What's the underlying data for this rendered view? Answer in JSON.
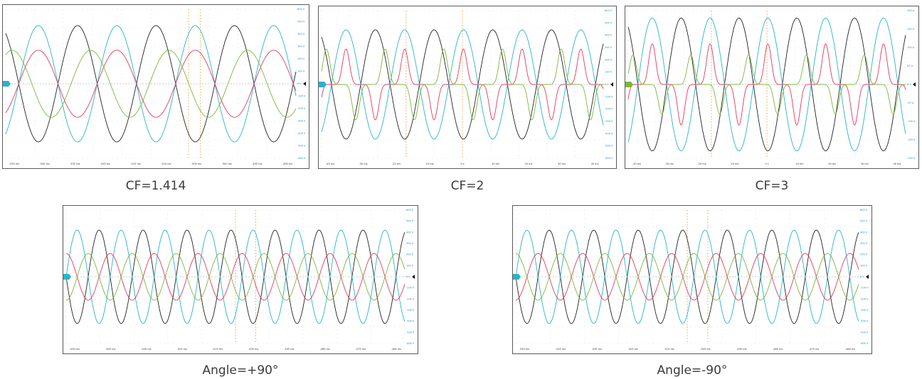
{
  "colors": {
    "background": "#ffffff",
    "grid": "#c8d6de",
    "marker": "#f0a040",
    "axis_text": "#1c8cc4",
    "ch1": "#222222",
    "ch2": "#2ab3c9",
    "ch3": "#e23a5c",
    "ch4": "#7ab83a"
  },
  "panels": [
    {
      "id": "cf-1414",
      "caption": "CF=1.414",
      "chart_data": {
        "type": "line",
        "waveform": "sine",
        "cycles": 3.7,
        "series": [
          {
            "color": "#222222",
            "amplitude": 0.78,
            "phase_deg": 120
          },
          {
            "color": "#2ab3c9",
            "amplitude": 0.78,
            "phase_deg": -60
          },
          {
            "color": "#e23a5c",
            "amplitude": 0.45,
            "phase_deg": -60
          },
          {
            "color": "#7ab83a",
            "amplitude": 0.45,
            "phase_deg": 60
          }
        ],
        "yticks": [
          "600 V",
          "500 V",
          "400 V",
          "300 V",
          "200 V",
          "100 V",
          "0 V",
          "-100 V",
          "-200 V",
          "-300 V",
          "-400 V",
          "-500 V",
          "-600 V"
        ],
        "xticks": [
          "-550 ms",
          "-545 ms",
          "-530 ms",
          "-520 ms",
          "-515 ms",
          "-510 ms",
          "-505 ms",
          "-500 ms",
          "-495 ms",
          "-490 ms"
        ]
      }
    },
    {
      "id": "cf-2",
      "caption": "CF=2",
      "chart_data": {
        "type": "line",
        "waveform": "sine",
        "cycles": 4.8,
        "series": [
          {
            "color": "#222222",
            "amplitude": 0.74,
            "phase_deg": 120
          },
          {
            "color": "#2ab3c9",
            "amplitude": 0.74,
            "phase_deg": -60
          },
          {
            "color": "#e23a5c",
            "amplitude": 0.48,
            "phase_deg": -60,
            "waveform": "pulse"
          },
          {
            "color": "#7ab83a",
            "amplitude": 0.48,
            "phase_deg": 60,
            "waveform": "pulse"
          }
        ],
        "yticks": [
          "600 V",
          "500 V",
          "400 V",
          "300 V",
          "200 V",
          "100 V",
          "0 V",
          "-100 V",
          "-200 V",
          "-300 V",
          "-400 V",
          "-500 V",
          "-600 V"
        ],
        "xticks": [
          "-40 ms",
          "-30 ms",
          "-20 ms",
          "-10 ms",
          "0 s",
          "10 ms",
          "20 ms",
          "30 ms",
          "40 ms"
        ]
      }
    },
    {
      "id": "cf-3",
      "caption": "CF=3",
      "chart_data": {
        "type": "line",
        "waveform": "sine",
        "cycles": 4.8,
        "series": [
          {
            "color": "#222222",
            "amplitude": 0.9,
            "phase_deg": 120
          },
          {
            "color": "#2ab3c9",
            "amplitude": 0.9,
            "phase_deg": -60
          },
          {
            "color": "#e23a5c",
            "amplitude": 0.55,
            "phase_deg": -60,
            "waveform": "pulse"
          },
          {
            "color": "#7ab83a",
            "amplitude": 0.4,
            "phase_deg": 60,
            "waveform": "pulse"
          }
        ],
        "yticks": [
          "200 A",
          "150 A",
          "100 A",
          "50 A",
          "0 A",
          "-50 A",
          "-100 A",
          "-150 A",
          "-200 A"
        ],
        "xticks": [
          "-40 ms",
          "-30 ms",
          "-20 ms",
          "-10 ms",
          "0 s",
          "10 ms",
          "20 ms",
          "30 ms",
          "40 ms"
        ]
      }
    },
    {
      "id": "angle-plus90",
      "caption": "Angle=+90°",
      "chart_data": {
        "type": "line",
        "waveform": "sine",
        "cycles": 7.7,
        "series": [
          {
            "color": "#222222",
            "amplitude": 0.7,
            "phase_deg": 180
          },
          {
            "color": "#2ab3c9",
            "amplitude": 0.7,
            "phase_deg": 0
          },
          {
            "color": "#e23a5c",
            "amplitude": 0.35,
            "phase_deg": 90
          },
          {
            "color": "#7ab83a",
            "amplitude": 0.35,
            "phase_deg": -90
          }
        ],
        "yticks": [
          "600 V",
          "500 V",
          "400 V",
          "300 V",
          "200 V",
          "100 V",
          "0 V",
          "-100 V",
          "-200 V",
          "-300 V",
          "-400 V",
          "-500 V",
          "-600 V"
        ],
        "xticks": [
          "-550 ms",
          "-545 ms",
          "-535 ms",
          "-525 ms",
          "-515 ms",
          "-505 ms",
          "-495 ms",
          "-485 ms",
          "-475 ms",
          "-465 ms"
        ]
      }
    },
    {
      "id": "angle-minus90",
      "caption": "Angle=-90°",
      "chart_data": {
        "type": "line",
        "waveform": "sine",
        "cycles": 7.7,
        "series": [
          {
            "color": "#222222",
            "amplitude": 0.7,
            "phase_deg": 180
          },
          {
            "color": "#2ab3c9",
            "amplitude": 0.7,
            "phase_deg": 0
          },
          {
            "color": "#e23a5c",
            "amplitude": 0.35,
            "phase_deg": -90
          },
          {
            "color": "#7ab83a",
            "amplitude": 0.35,
            "phase_deg": 90
          }
        ],
        "yticks": [
          "600 V",
          "500 V",
          "400 V",
          "300 V",
          "200 V",
          "100 V",
          "0 V",
          "-100 V",
          "-200 V",
          "-300 V",
          "-400 V",
          "-500 V",
          "-600 V"
        ],
        "xticks": [
          "-550 ms",
          "-545 ms",
          "-535 ms",
          "-525 ms",
          "-515 ms",
          "-505 ms",
          "-495 ms",
          "-485 ms",
          "-475 ms",
          "-465 ms"
        ]
      }
    }
  ]
}
